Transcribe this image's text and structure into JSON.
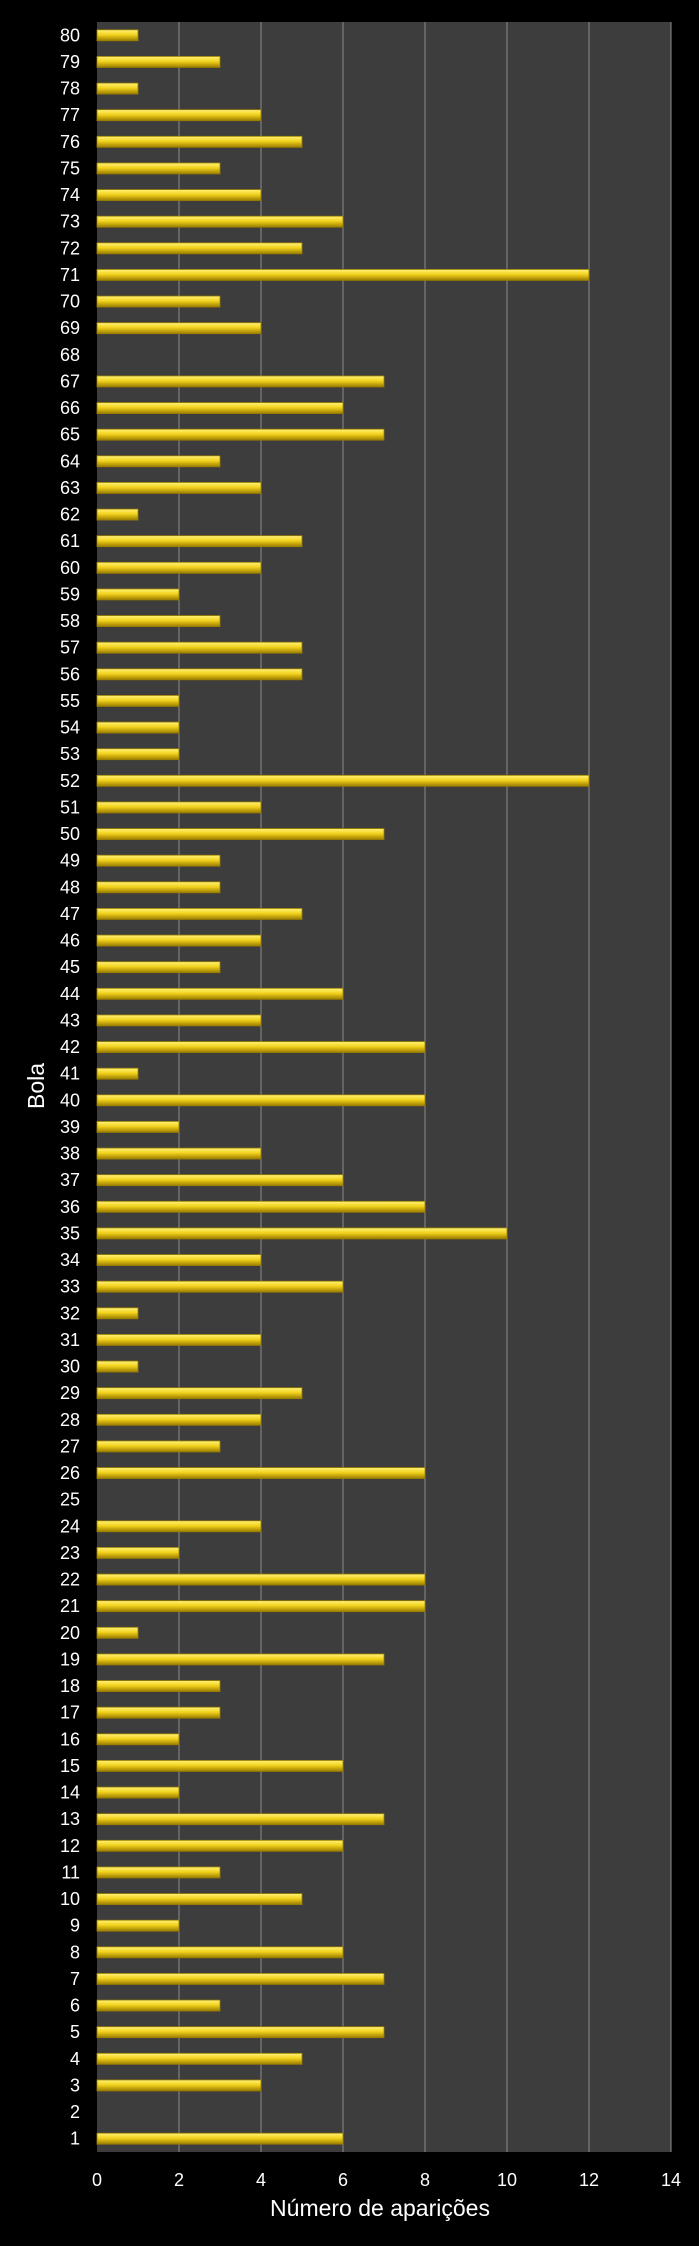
{
  "chart_data": {
    "type": "bar",
    "orientation": "horizontal",
    "title": "",
    "xlabel": "Número de aparições",
    "ylabel": "Bola",
    "xlim": [
      0,
      14
    ],
    "xticks": [
      0,
      2,
      4,
      6,
      8,
      10,
      12,
      14
    ],
    "grid": true,
    "categories": [
      "1",
      "2",
      "3",
      "4",
      "5",
      "6",
      "7",
      "8",
      "9",
      "10",
      "11",
      "12",
      "13",
      "14",
      "15",
      "16",
      "17",
      "18",
      "19",
      "20",
      "21",
      "22",
      "23",
      "24",
      "25",
      "26",
      "27",
      "28",
      "29",
      "30",
      "31",
      "32",
      "33",
      "34",
      "35",
      "36",
      "37",
      "38",
      "39",
      "40",
      "41",
      "42",
      "43",
      "44",
      "45",
      "46",
      "47",
      "48",
      "49",
      "50",
      "51",
      "52",
      "53",
      "54",
      "55",
      "56",
      "57",
      "58",
      "59",
      "60",
      "61",
      "62",
      "63",
      "64",
      "65",
      "66",
      "67",
      "68",
      "69",
      "70",
      "71",
      "72",
      "73",
      "74",
      "75",
      "76",
      "77",
      "78",
      "79",
      "80"
    ],
    "values": [
      6,
      0,
      4,
      5,
      7,
      3,
      7,
      6,
      2,
      5,
      3,
      6,
      7,
      2,
      6,
      2,
      3,
      3,
      7,
      1,
      8,
      8,
      2,
      4,
      0,
      8,
      3,
      4,
      5,
      1,
      4,
      1,
      6,
      4,
      10,
      8,
      6,
      4,
      2,
      8,
      1,
      8,
      4,
      6,
      3,
      4,
      5,
      3,
      3,
      7,
      4,
      12,
      2,
      2,
      2,
      5,
      5,
      3,
      2,
      4,
      5,
      1,
      4,
      3,
      7,
      6,
      7,
      0,
      4,
      3,
      12,
      5,
      6,
      4,
      3,
      5,
      4,
      1,
      3,
      1
    ]
  },
  "colors": {
    "background": "#000000",
    "plot_area": "#3d3d3d",
    "gridline": "#8c8c8c",
    "bar_fill": "#f2d21c",
    "bar_highlight": "#fff27a",
    "bar_shadow": "#9a7d00",
    "text": "#ffffff"
  }
}
